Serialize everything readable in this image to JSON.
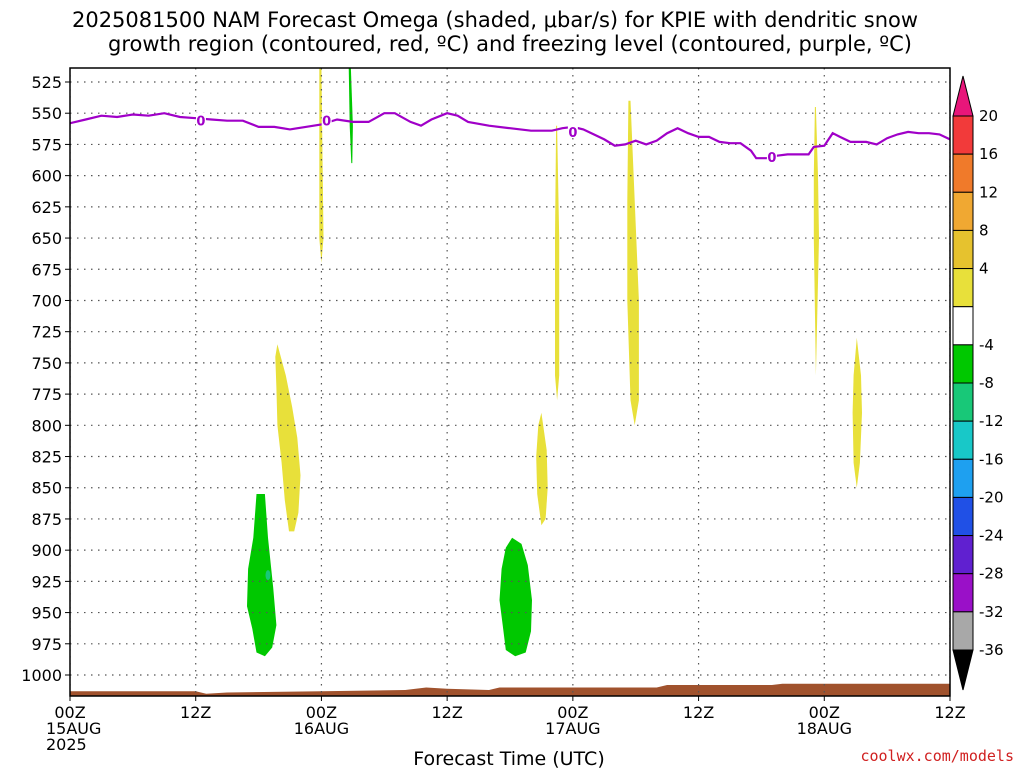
{
  "chart_data": {
    "type": "time-pressure cross section",
    "title_lines": [
      "2025081500 NAM Forecast Omega (shaded, μbar/s) for KPIE with dendritic snow",
      "growth region (contoured, red, ºC) and freezing level (contoured, purple, ºC)"
    ],
    "xlabel": "Forecast Time (UTC)",
    "credit": "coolwx.com/models",
    "grid": true,
    "x_range_hours": [
      0,
      84
    ],
    "y_range_hPa": [
      1020,
      515
    ],
    "x_ticks": [
      {
        "h": 0,
        "line1": "00Z",
        "line2": "15AUG",
        "line3": "2025"
      },
      {
        "h": 12,
        "line1": "12Z",
        "line2": "",
        "line3": ""
      },
      {
        "h": 24,
        "line1": "00Z",
        "line2": "16AUG",
        "line3": ""
      },
      {
        "h": 36,
        "line1": "12Z",
        "line2": "",
        "line3": ""
      },
      {
        "h": 48,
        "line1": "00Z",
        "line2": "17AUG",
        "line3": ""
      },
      {
        "h": 60,
        "line1": "12Z",
        "line2": "",
        "line3": ""
      },
      {
        "h": 72,
        "line1": "00Z",
        "line2": "18AUG",
        "line3": ""
      },
      {
        "h": 84,
        "line1": "12Z",
        "line2": "",
        "line3": ""
      }
    ],
    "y_ticks": [
      "525",
      "550",
      "575",
      "600",
      "625",
      "650",
      "675",
      "700",
      "725",
      "750",
      "775",
      "800",
      "825",
      "850",
      "875",
      "900",
      "925",
      "950",
      "975",
      "1000"
    ],
    "colorbar": {
      "labels": [
        "20",
        "16",
        "12",
        "8",
        "4",
        "-4",
        "-8",
        "-12",
        "-16",
        "-20",
        "-24",
        "-28",
        "-32",
        "-36"
      ],
      "colors": [
        "#e8167a",
        "#f23a3a",
        "#f07a2a",
        "#f0a832",
        "#e6c22e",
        "#e8e03a",
        "#ffffff",
        "#00c800",
        "#18c878",
        "#18c8c8",
        "#1ea0f0",
        "#2050e6",
        "#6020d0",
        "#9a10c8",
        "#a8a8a8",
        "#000000"
      ]
    },
    "freezing_level": {
      "label": "0",
      "color": "#a000c8",
      "points": [
        [
          0,
          558
        ],
        [
          1.5,
          555
        ],
        [
          3,
          552
        ],
        [
          4.5,
          553
        ],
        [
          6,
          551
        ],
        [
          7.5,
          552
        ],
        [
          9,
          550
        ],
        [
          10.5,
          553
        ],
        [
          12,
          554
        ],
        [
          13.5,
          555
        ],
        [
          15,
          556
        ],
        [
          16.5,
          556
        ],
        [
          18,
          561
        ],
        [
          19.5,
          561
        ],
        [
          21,
          563
        ],
        [
          22.5,
          561
        ],
        [
          24,
          559
        ],
        [
          25.5,
          555
        ],
        [
          27,
          557
        ],
        [
          28.5,
          557
        ],
        [
          30,
          550
        ],
        [
          31,
          550
        ],
        [
          32.5,
          557
        ],
        [
          33.5,
          560
        ],
        [
          34.5,
          555
        ],
        [
          36,
          550
        ],
        [
          37,
          552
        ],
        [
          38,
          557
        ],
        [
          40,
          560
        ],
        [
          42,
          562
        ],
        [
          44,
          564
        ],
        [
          46,
          564
        ],
        [
          47,
          562
        ],
        [
          48,
          561
        ],
        [
          49,
          563
        ],
        [
          50,
          567
        ],
        [
          51,
          571
        ],
        [
          52,
          576
        ],
        [
          53,
          575
        ],
        [
          54,
          572
        ],
        [
          55,
          575
        ],
        [
          56,
          572
        ],
        [
          57,
          566
        ],
        [
          58,
          562
        ],
        [
          59,
          566
        ],
        [
          60,
          569
        ],
        [
          61,
          569
        ],
        [
          62,
          573
        ],
        [
          63,
          574
        ],
        [
          64,
          574
        ],
        [
          65,
          580
        ],
        [
          65.5,
          586
        ],
        [
          66.5,
          586
        ],
        [
          67.5,
          584
        ],
        [
          68.5,
          583
        ],
        [
          69.5,
          583
        ],
        [
          70.5,
          583
        ],
        [
          71,
          577
        ],
        [
          72,
          576
        ],
        [
          72.8,
          566
        ],
        [
          73.5,
          569
        ],
        [
          74.5,
          573
        ],
        [
          76,
          573
        ],
        [
          77,
          575
        ],
        [
          78,
          570
        ],
        [
          79,
          567
        ],
        [
          80,
          565
        ],
        [
          81,
          566
        ],
        [
          82,
          566
        ],
        [
          83,
          567
        ],
        [
          84,
          571
        ]
      ],
      "label_at": [
        [
          12.5,
          556
        ],
        [
          24.5,
          556
        ],
        [
          48,
          565
        ],
        [
          67,
          585
        ]
      ]
    },
    "omega_features": [
      {
        "name": "yellow-plume-00z16",
        "value_range": "4 to 8",
        "color": "#e8e03a",
        "points": [
          [
            24,
            512
          ],
          [
            24.2,
            650
          ],
          [
            24,
            670
          ],
          [
            23.8,
            650
          ],
          [
            23.8,
            512
          ]
        ]
      },
      {
        "name": "green-plume-03z16",
        "value_range": "-4 to -8",
        "color": "#00c800",
        "points": [
          [
            26.8,
            512
          ],
          [
            27,
            560
          ],
          [
            26.95,
            590
          ],
          [
            26.85,
            590
          ],
          [
            26.7,
            560
          ],
          [
            26.6,
            512
          ]
        ]
      },
      {
        "name": "yellow-plume-22z16",
        "value_range": "4 to 8",
        "color": "#e8e03a",
        "points": [
          [
            46.5,
            560
          ],
          [
            46.7,
            650
          ],
          [
            46.7,
            760
          ],
          [
            46.5,
            780
          ],
          [
            46.3,
            760
          ],
          [
            46.3,
            650
          ],
          [
            46.4,
            560
          ]
        ]
      },
      {
        "name": "yellow-plume-05z17",
        "value_range": "4 to 8",
        "color": "#e8e03a",
        "points": [
          [
            53.5,
            540
          ],
          [
            53.9,
            620
          ],
          [
            54.3,
            700
          ],
          [
            54.3,
            780
          ],
          [
            53.9,
            800
          ],
          [
            53.5,
            780
          ],
          [
            53.2,
            700
          ],
          [
            53.2,
            620
          ],
          [
            53.3,
            540
          ]
        ]
      },
      {
        "name": "yellow-plume-23z17",
        "value_range": "4 to 8",
        "color": "#e8e03a",
        "points": [
          [
            71.2,
            545
          ],
          [
            71.4,
            600
          ],
          [
            71.5,
            650
          ],
          [
            71.2,
            760
          ],
          [
            71.0,
            650
          ],
          [
            71.0,
            600
          ],
          [
            71.1,
            545
          ]
        ]
      },
      {
        "name": "yellow-blob-03z18",
        "value_range": "4 to 8",
        "color": "#e8e03a",
        "points": [
          [
            75.1,
            730
          ],
          [
            75.5,
            760
          ],
          [
            75.6,
            790
          ],
          [
            75.4,
            830
          ],
          [
            75.1,
            850
          ],
          [
            74.8,
            830
          ],
          [
            74.7,
            790
          ],
          [
            74.8,
            760
          ]
        ]
      },
      {
        "name": "yellow-plume-18z15",
        "value_range": "4 to 8",
        "color": "#e8e03a",
        "points": [
          [
            19.8,
            735
          ],
          [
            20.6,
            760
          ],
          [
            21.2,
            785
          ],
          [
            21.7,
            810
          ],
          [
            22,
            840
          ],
          [
            21.8,
            870
          ],
          [
            21.4,
            885
          ],
          [
            20.9,
            885
          ],
          [
            20.5,
            860
          ],
          [
            20.2,
            830
          ],
          [
            19.8,
            800
          ],
          [
            19.7,
            770
          ],
          [
            19.6,
            745
          ]
        ]
      },
      {
        "name": "yellow-plume-21z16",
        "value_range": "4 to 8",
        "color": "#e8e03a",
        "points": [
          [
            45,
            790
          ],
          [
            45.5,
            820
          ],
          [
            45.6,
            850
          ],
          [
            45.4,
            875
          ],
          [
            45.0,
            880
          ],
          [
            44.6,
            855
          ],
          [
            44.5,
            825
          ],
          [
            44.7,
            800
          ]
        ]
      },
      {
        "name": "green-blob-18z15",
        "value_range": "-4 to -8",
        "color": "#00c800",
        "points": [
          [
            17.8,
            855
          ],
          [
            18.6,
            855
          ],
          [
            18.9,
            890
          ],
          [
            19.4,
            930
          ],
          [
            19.7,
            960
          ],
          [
            19.3,
            978
          ],
          [
            18.6,
            985
          ],
          [
            17.8,
            982
          ],
          [
            17.4,
            963
          ],
          [
            16.9,
            945
          ],
          [
            17.0,
            915
          ],
          [
            17.5,
            890
          ]
        ]
      },
      {
        "name": "green-blob-18z16",
        "value_range": "-4 to -8",
        "color": "#00c800",
        "points": [
          [
            42.2,
            890
          ],
          [
            43.1,
            895
          ],
          [
            43.7,
            912
          ],
          [
            44.1,
            940
          ],
          [
            44.0,
            965
          ],
          [
            43.5,
            982
          ],
          [
            42.5,
            985
          ],
          [
            41.6,
            980
          ],
          [
            41.3,
            960
          ],
          [
            41.0,
            940
          ],
          [
            41.2,
            915
          ],
          [
            41.6,
            898
          ]
        ]
      }
    ],
    "omega_small_features": [
      {
        "name": "cyan-spot",
        "value_range": "-8 to -12",
        "color": "#18c878",
        "h": 18.9,
        "p": 920
      }
    ],
    "terrain": {
      "color": "#a0522d",
      "points": [
        [
          0,
          1013
        ],
        [
          12,
          1013
        ],
        [
          13,
          1015
        ],
        [
          15,
          1014
        ],
        [
          24,
          1013
        ],
        [
          32,
          1012
        ],
        [
          34,
          1010
        ],
        [
          36,
          1011
        ],
        [
          40,
          1012
        ],
        [
          41,
          1010
        ],
        [
          56,
          1010
        ],
        [
          57,
          1008
        ],
        [
          63,
          1008
        ],
        [
          67,
          1008
        ],
        [
          68,
          1007
        ],
        [
          84,
          1007
        ]
      ]
    }
  }
}
